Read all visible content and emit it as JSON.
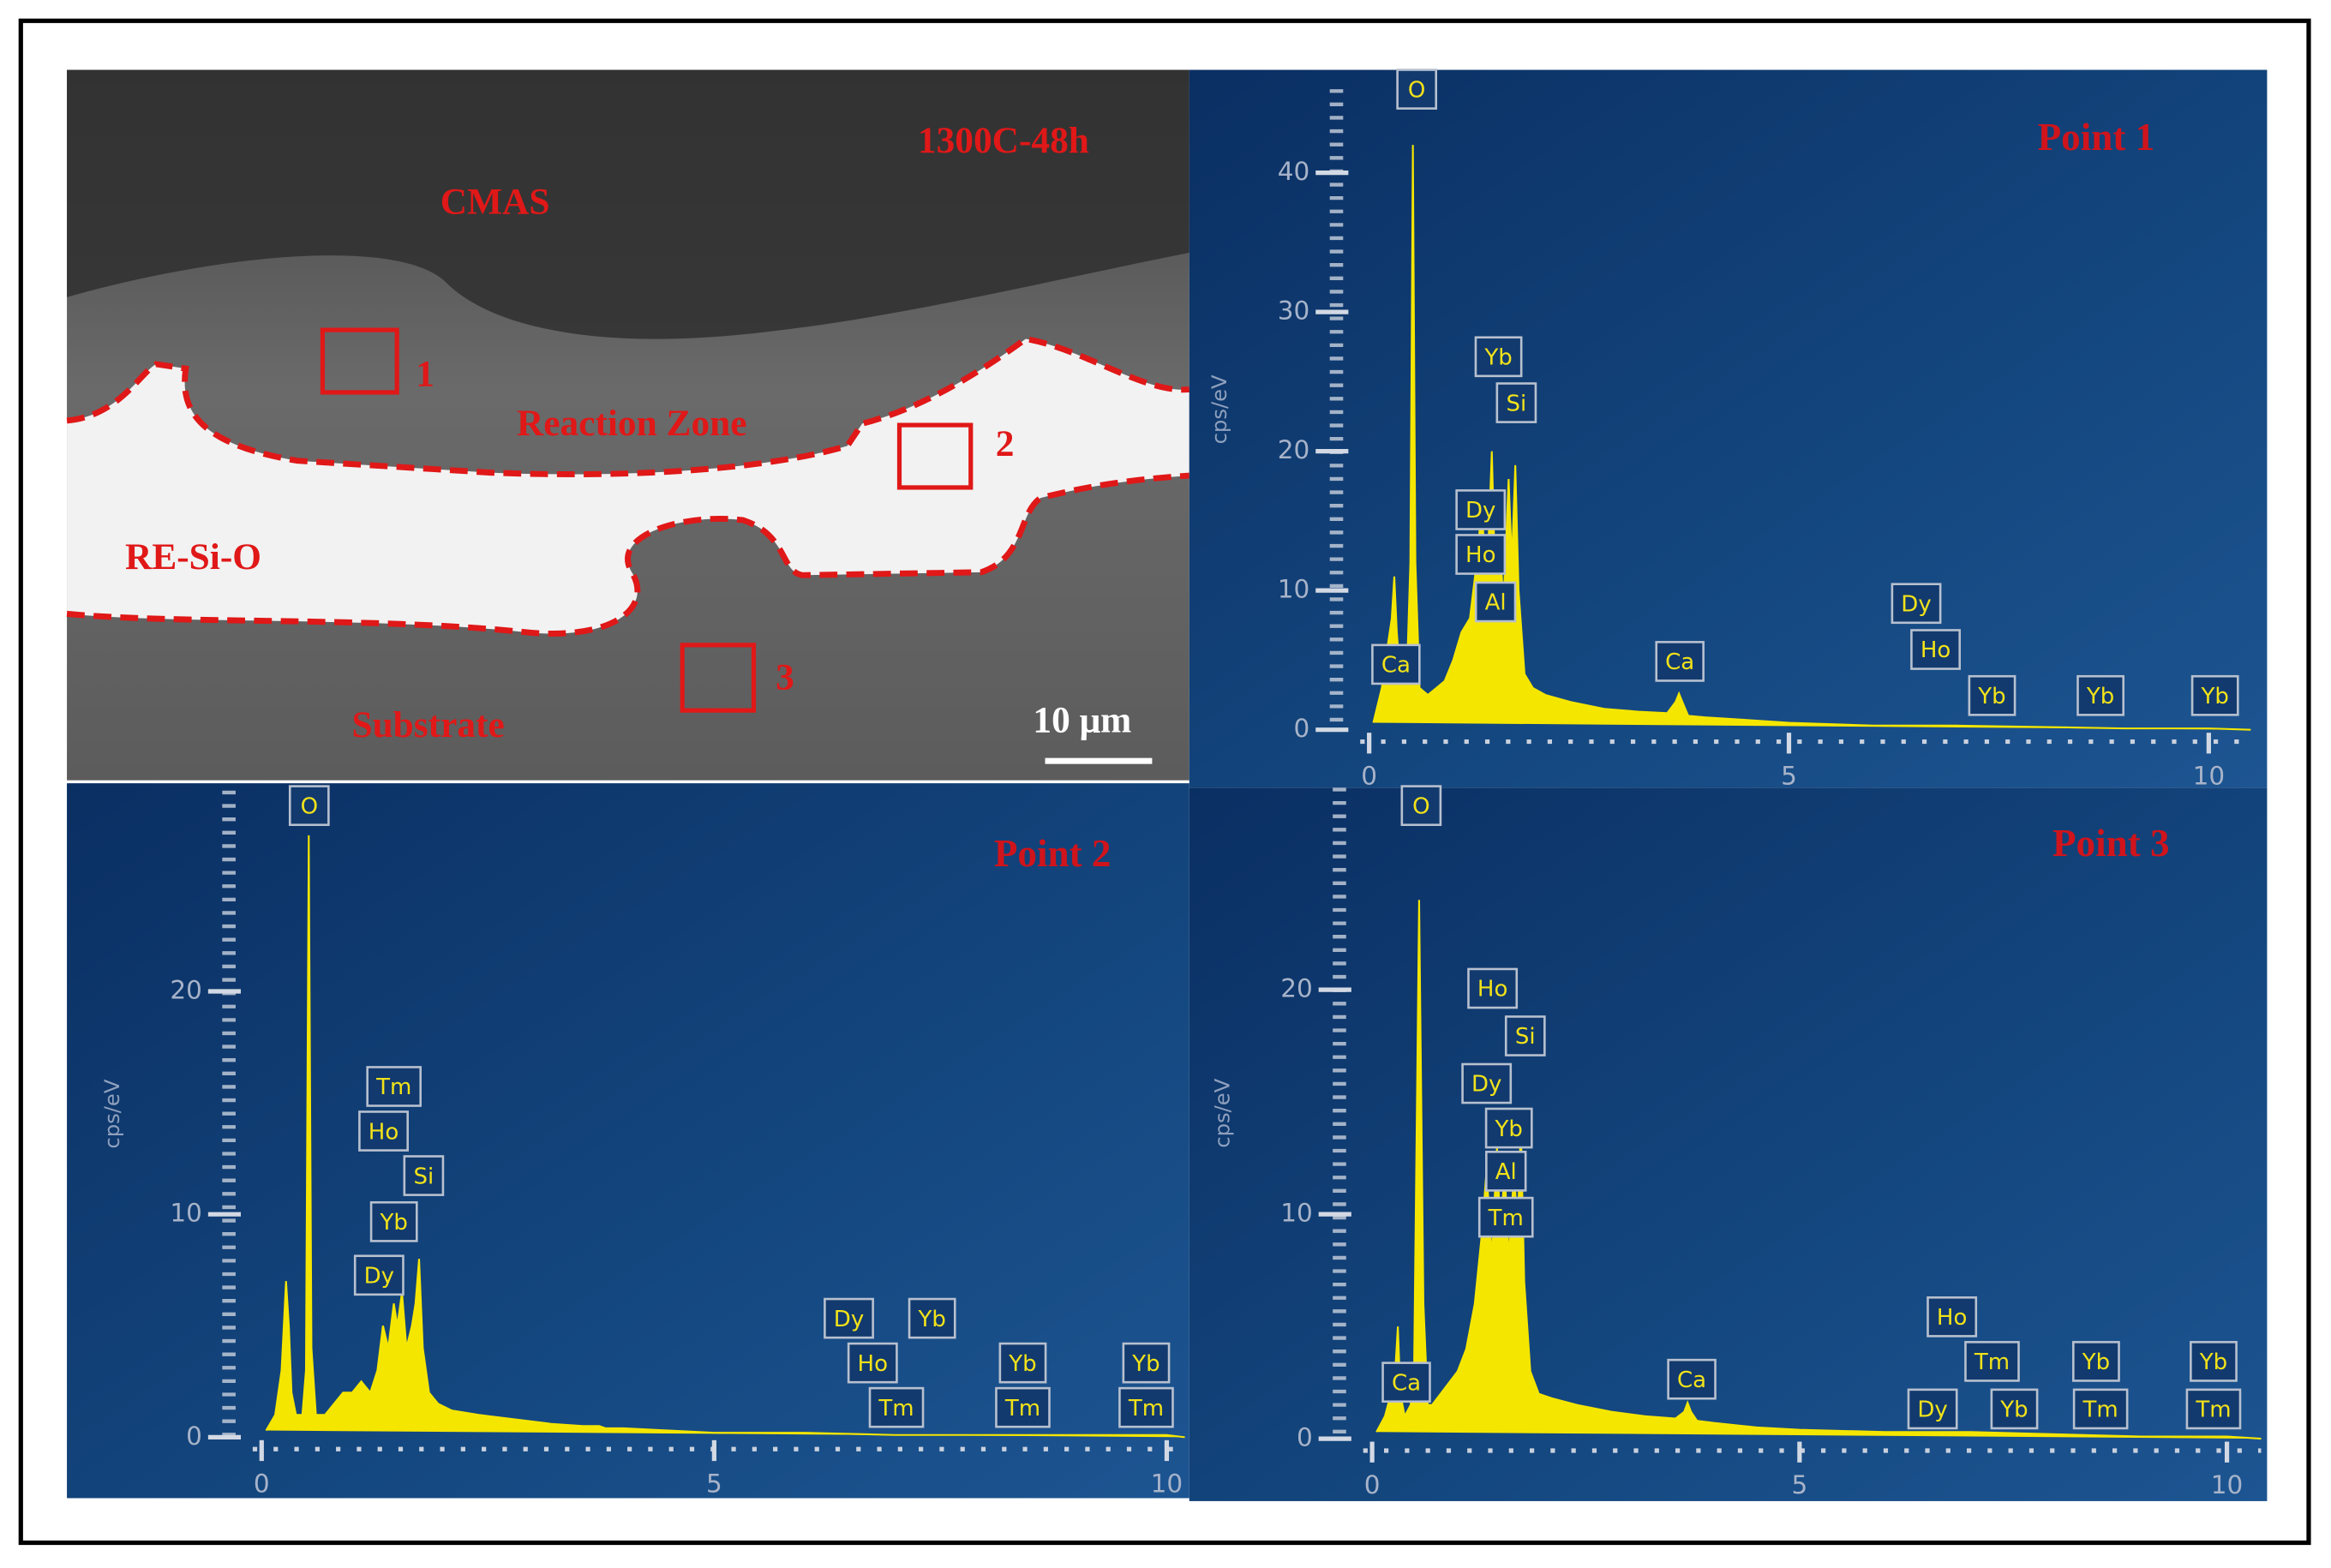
{
  "micrograph": {
    "condition": "1300C-48h",
    "labels": [
      "CMAS",
      "Reaction Zone",
      "RE-Si-O",
      "Substrate"
    ],
    "points": [
      "1",
      "2",
      "3"
    ],
    "scale_bar": "10 μm"
  },
  "chart_data": [
    {
      "type": "area",
      "title": "Point 1",
      "ylabel": "cps/eV",
      "color": "#f5e600",
      "x": [
        0.05,
        0.15,
        0.22,
        0.27,
        0.3,
        0.33,
        0.38,
        0.45,
        0.49,
        0.52,
        0.55,
        0.6,
        0.7,
        0.8,
        0.9,
        1.0,
        1.1,
        1.2,
        1.28,
        1.34,
        1.4,
        1.46,
        1.5,
        1.55,
        1.6,
        1.66,
        1.7,
        1.74,
        1.78,
        1.85,
        1.95,
        2.1,
        2.4,
        2.8,
        3.2,
        3.55,
        3.65,
        3.69,
        3.73,
        3.8,
        4.0,
        4.5,
        5.0,
        6.0,
        7.0,
        8.0,
        9.0,
        10.0,
        10.5
      ],
      "values": [
        0.5,
        3,
        6,
        8,
        11,
        7,
        3,
        4,
        12,
        42,
        12,
        3,
        2.5,
        3,
        3.5,
        5,
        7,
        8,
        12,
        16,
        10,
        20,
        11,
        14,
        9,
        18,
        12,
        19,
        10,
        4,
        3,
        2.5,
        2,
        1.5,
        1.3,
        1.2,
        2,
        2.6,
        2,
        1,
        0.9,
        0.7,
        0.5,
        0.3,
        0.3,
        0.2,
        0.1,
        0.1,
        0
      ],
      "xlim": [
        0,
        10.5
      ],
      "ylim": [
        0,
        46
      ],
      "xticks": [
        0,
        5,
        10
      ],
      "yticks": [
        0,
        10,
        20,
        30,
        40
      ],
      "annotations": [
        "O",
        "Yb",
        "Si",
        "Dy",
        "Ho",
        "Al",
        "Ca",
        "Ca",
        "Dy",
        "Ho",
        "Yb",
        "Yb",
        "Yb"
      ]
    },
    {
      "type": "area",
      "title": "Point 2",
      "ylabel": "cps/eV",
      "color": "#f5e600",
      "x": [
        0.05,
        0.15,
        0.22,
        0.27,
        0.3,
        0.33,
        0.38,
        0.45,
        0.49,
        0.52,
        0.55,
        0.6,
        0.7,
        0.8,
        0.9,
        1.0,
        1.1,
        1.2,
        1.28,
        1.34,
        1.4,
        1.46,
        1.5,
        1.55,
        1.6,
        1.66,
        1.7,
        1.74,
        1.78,
        1.85,
        1.95,
        2.1,
        2.4,
        2.8,
        3.2,
        3.55,
        3.65,
        3.69,
        3.73,
        3.8,
        4.0,
        4.5,
        5.0,
        6.0,
        7.0,
        8.0,
        9.0,
        10.0,
        10.2
      ],
      "values": [
        0.3,
        1,
        3,
        7,
        5,
        2,
        1,
        1,
        3,
        27,
        4,
        1,
        1,
        1.5,
        2,
        2,
        2.5,
        2,
        3,
        5,
        4,
        6,
        5,
        6.5,
        4,
        5,
        6,
        8,
        4,
        2,
        1.5,
        1.2,
        1,
        0.8,
        0.6,
        0.5,
        0.5,
        0.5,
        0.5,
        0.4,
        0.4,
        0.3,
        0.2,
        0.2,
        0.1,
        0.1,
        0.1,
        0.1,
        0
      ],
      "xlim": [
        0,
        10.2
      ],
      "ylim": [
        0,
        29
      ],
      "xticks": [
        0,
        5,
        10
      ],
      "yticks": [
        0,
        10,
        20
      ],
      "annotations": [
        "O",
        "Tm",
        "Ho",
        "Si",
        "Yb",
        "Dy",
        "Dy",
        "Yb",
        "Ho",
        "Tm",
        "Yb",
        "Tm",
        "Yb",
        "Tm"
      ]
    },
    {
      "type": "area",
      "title": "Point 3",
      "ylabel": "cps/eV",
      "color": "#f5e600",
      "x": [
        0.05,
        0.15,
        0.22,
        0.27,
        0.3,
        0.33,
        0.38,
        0.45,
        0.49,
        0.55,
        0.6,
        0.65,
        0.7,
        0.8,
        0.9,
        1.0,
        1.1,
        1.2,
        1.28,
        1.34,
        1.4,
        1.46,
        1.5,
        1.55,
        1.6,
        1.66,
        1.7,
        1.74,
        1.78,
        1.85,
        1.95,
        2.1,
        2.4,
        2.8,
        3.2,
        3.55,
        3.65,
        3.69,
        3.73,
        3.8,
        4.0,
        4.5,
        5.0,
        6.0,
        7.0,
        8.0,
        9.0,
        10.0,
        10.4
      ],
      "values": [
        0.3,
        1,
        2,
        3,
        5,
        2,
        1,
        1.5,
        3,
        24,
        6,
        1.5,
        1.5,
        2,
        2.5,
        3,
        4,
        6,
        9,
        12,
        8,
        13,
        9,
        12,
        8,
        12,
        9,
        14,
        7,
        3,
        2,
        1.8,
        1.5,
        1.2,
        1,
        0.9,
        1.2,
        1.6,
        1.2,
        0.8,
        0.7,
        0.5,
        0.4,
        0.3,
        0.3,
        0.2,
        0.1,
        0.1,
        0
      ],
      "xlim": [
        0,
        10.4
      ],
      "ylim": [
        0,
        29
      ],
      "xticks": [
        0,
        5,
        10
      ],
      "yticks": [
        0,
        10,
        20
      ],
      "annotations": [
        "O",
        "Ho",
        "Si",
        "Dy",
        "Yb",
        "Al",
        "Tm",
        "Ca",
        "Ca",
        "Ho",
        "Tm",
        "Dy",
        "Yb",
        "Yb",
        "Tm",
        "Yb",
        "Tm"
      ]
    }
  ]
}
